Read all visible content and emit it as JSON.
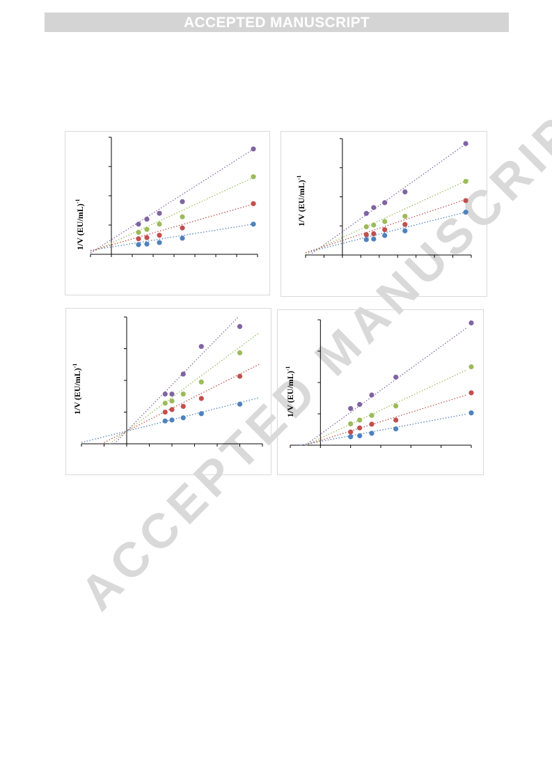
{
  "header": {
    "banner_text": "ACCEPTED MANUSCRIPT"
  },
  "watermark": {
    "text": "ACCEPTED MANUSCRIPT"
  },
  "colors": {
    "series_1": "#4f81bd",
    "series_2": "#c0504d",
    "series_3": "#9bbb59",
    "series_4": "#8064a2",
    "axis": "#000000",
    "panel_border": "#d9d9d9"
  },
  "chart_data": [
    {
      "type": "scatter",
      "ylabel": "1/V (EU/mL)",
      "ylabel_exponent": "-1",
      "x_ticks": 7,
      "xlim": [
        -1,
        7
      ],
      "ylim": [
        0,
        4
      ],
      "y_ticks": 4,
      "grid": false,
      "x": [
        1.3,
        1.7,
        2.3,
        3.4,
        6.8
      ],
      "series": [
        {
          "values": [
            0.33,
            0.35,
            0.4,
            0.55,
            1.03
          ],
          "fit": [
            0.25,
            0.115
          ]
        },
        {
          "values": [
            0.53,
            0.57,
            0.65,
            0.9,
            1.73
          ],
          "fit": [
            0.32,
            0.205
          ]
        },
        {
          "values": [
            0.75,
            0.85,
            1.03,
            1.28,
            2.65
          ],
          "fit": [
            0.38,
            0.33
          ]
        },
        {
          "values": [
            1.03,
            1.2,
            1.4,
            1.8,
            3.6
          ],
          "fit": [
            0.5,
            0.455
          ]
        }
      ]
    },
    {
      "type": "scatter",
      "ylabel": "1/V (EU/mL)",
      "ylabel_exponent": "-1",
      "x_ticks": 7,
      "xlim": [
        -2,
        7
      ],
      "ylim": [
        0,
        4
      ],
      "y_ticks": 4,
      "grid": false,
      "x": [
        1.3,
        1.7,
        2.3,
        3.4,
        6.7
      ],
      "series": [
        {
          "values": [
            0.53,
            0.55,
            0.67,
            0.83,
            1.47
          ],
          "fit": [
            0.4,
            0.16
          ]
        },
        {
          "values": [
            0.7,
            0.73,
            0.87,
            1.05,
            1.87
          ],
          "fit": [
            0.5,
            0.21
          ]
        },
        {
          "values": [
            0.97,
            1.03,
            1.15,
            1.33,
            2.53
          ],
          "fit": [
            0.6,
            0.29
          ]
        },
        {
          "values": [
            1.43,
            1.63,
            1.8,
            2.17,
            3.83
          ],
          "fit": [
            0.8,
            0.45
          ]
        }
      ]
    },
    {
      "type": "scatter",
      "ylabel": "1/V (EU/mL)",
      "ylabel_exponent": "-1",
      "x_ticks": 6,
      "xlim": [
        -2,
        6
      ],
      "ylim": [
        0,
        4
      ],
      "y_ticks": 4,
      "grid": false,
      "x": [
        1.7,
        2.0,
        2.5,
        3.3,
        5.0
      ],
      "series": [
        {
          "values": [
            0.72,
            0.75,
            0.82,
            0.95,
            1.25
          ],
          "fit": [
            0.4,
            0.18
          ]
        },
        {
          "values": [
            1.0,
            1.08,
            1.18,
            1.43,
            2.13
          ],
          "fit": [
            0.4,
            0.36
          ]
        },
        {
          "values": [
            1.28,
            1.35,
            1.57,
            1.95,
            2.87
          ],
          "fit": [
            0.4,
            0.53
          ]
        },
        {
          "values": [
            1.57,
            1.57,
            2.2,
            3.07,
            3.7
          ],
          "fit": [
            0.4,
            0.73
          ]
        }
      ]
    },
    {
      "type": "scatter",
      "ylabel": "1/V (EU/mL)",
      "ylabel_exponent": "-1",
      "x_ticks": 6,
      "xlim": [
        -1,
        5
      ],
      "ylim": [
        0,
        4
      ],
      "y_ticks": 4,
      "grid": false,
      "x": [
        1.0,
        1.3,
        1.7,
        2.5,
        5.0
      ],
      "series": [
        {
          "values": [
            0.27,
            0.3,
            0.38,
            0.52,
            1.03
          ],
          "fit": [
            0.12,
            0.18
          ]
        },
        {
          "values": [
            0.42,
            0.55,
            0.67,
            0.8,
            1.67
          ],
          "fit": [
            0.15,
            0.3
          ]
        },
        {
          "values": [
            0.68,
            0.8,
            0.95,
            1.25,
            2.5
          ],
          "fit": [
            0.22,
            0.45
          ]
        },
        {
          "values": [
            1.17,
            1.3,
            1.6,
            2.17,
            3.9
          ],
          "fit": [
            0.35,
            0.7
          ]
        }
      ]
    }
  ]
}
